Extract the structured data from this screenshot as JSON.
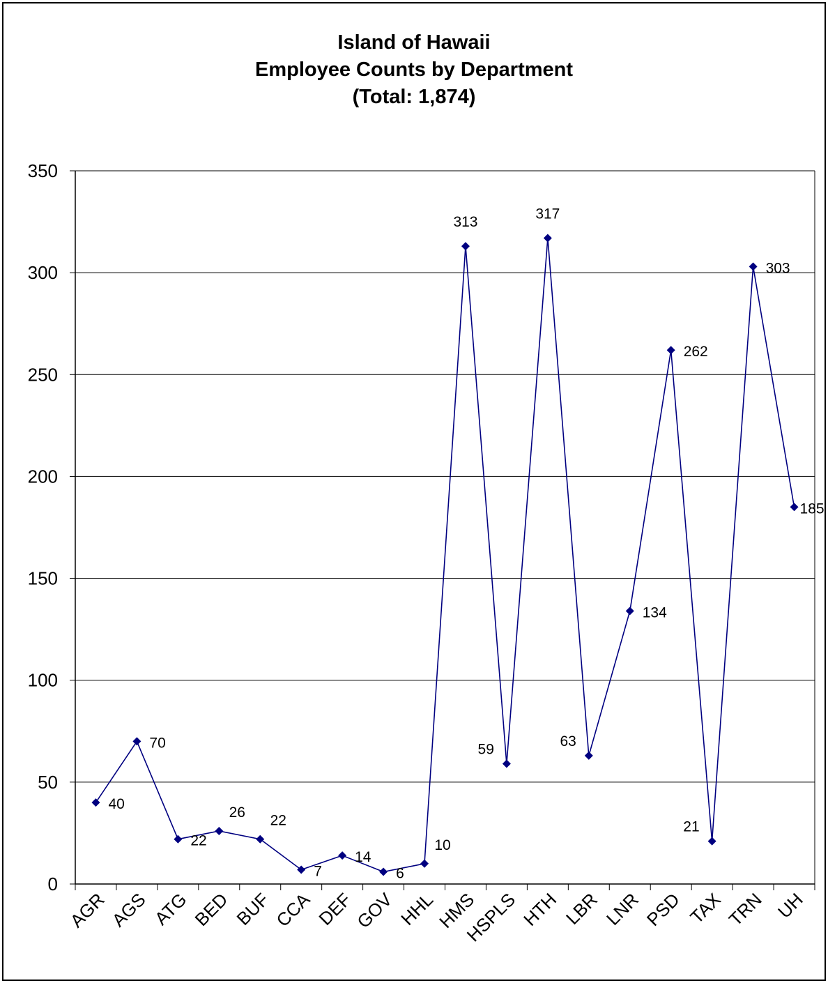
{
  "chart_data": {
    "type": "line",
    "title_lines": [
      "Island of Hawaii",
      "Employee Counts by Department",
      "(Total:  1,874)"
    ],
    "categories": [
      "AGR",
      "AGS",
      "ATG",
      "BED",
      "BUF",
      "CCA",
      "DEF",
      "GOV",
      "HHL",
      "HMS",
      "HSPLS",
      "HTH",
      "LBR",
      "LNR",
      "PSD",
      "TAX",
      "TRN",
      "UH"
    ],
    "values": [
      40,
      70,
      22,
      26,
      22,
      7,
      14,
      6,
      10,
      313,
      59,
      317,
      63,
      134,
      262,
      21,
      303,
      185
    ],
    "xlabel": "",
    "ylabel": "",
    "ylim": [
      0,
      350
    ],
    "yticks": [
      "0",
      "50",
      "100",
      "150",
      "200",
      "250",
      "300",
      "350"
    ],
    "grid": true,
    "legend": "none",
    "line_color": "#000080",
    "grid_color": "#000000"
  }
}
